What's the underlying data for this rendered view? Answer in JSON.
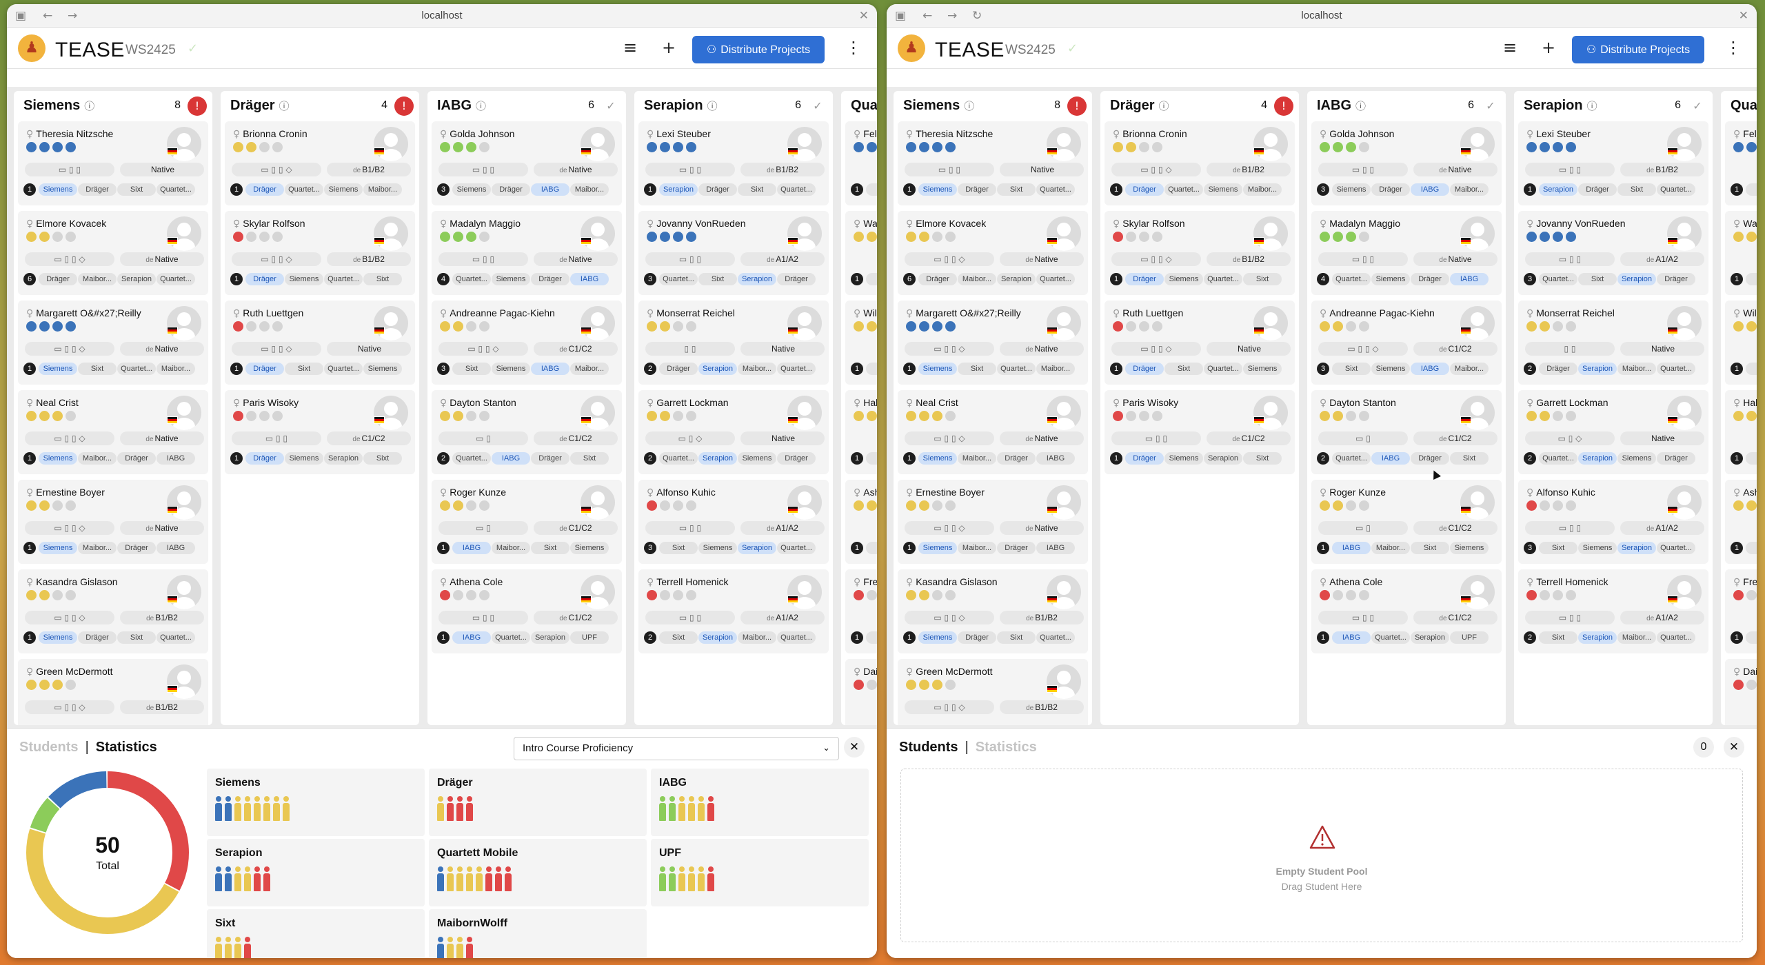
{
  "browser": {
    "url": "localhost"
  },
  "app": {
    "title": "TEASE",
    "semester": "WS2425",
    "distribute_label": "Distribute Projects"
  },
  "colors": {
    "primary": "#2f6fd4",
    "danger": "#d93636",
    "blue_dot": "#3b73b9",
    "yellow_dot": "#e9c752",
    "green_dot": "#8ccc5a",
    "red_dot": "#e04848",
    "grey_dot": "#d5d5d5"
  },
  "columns": [
    {
      "name": "Siemens",
      "count": "8",
      "status": "warning",
      "students": [
        {
          "name": "Theresia Nitzsche",
          "skill": [
            "b",
            "b",
            "b",
            "b"
          ],
          "devices": "▭ ▯ ▯",
          "lang_prefix": "",
          "lang": "Native",
          "pref_count": "1",
          "prefs": [
            "Siemens",
            "Dräger",
            "Sixt",
            "Quartet..."
          ],
          "hl": 0
        },
        {
          "name": "Elmore Kovacek",
          "skill": [
            "y",
            "y",
            "g",
            "g"
          ],
          "devices": "▭ ▯ ▯ ◇",
          "lang_prefix": "de",
          "lang": "Native",
          "pref_count": "6",
          "prefs": [
            "Dräger",
            "Maibor...",
            "Serapion",
            "Quartet..."
          ],
          "hl": -1
        },
        {
          "name": "Margarett O&#x27;Reilly",
          "skill": [
            "b",
            "b",
            "b",
            "b"
          ],
          "devices": "▭ ▯ ▯ ◇",
          "lang_prefix": "de",
          "lang": "Native",
          "pref_count": "1",
          "prefs": [
            "Siemens",
            "Sixt",
            "Quartet...",
            "Maibor..."
          ],
          "hl": 0
        },
        {
          "name": "Neal Crist",
          "skill": [
            "y",
            "y",
            "y",
            "g"
          ],
          "devices": "▭ ▯ ▯ ◇",
          "lang_prefix": "de",
          "lang": "Native",
          "pref_count": "1",
          "prefs": [
            "Siemens",
            "Maibor...",
            "Dräger",
            "IABG"
          ],
          "hl": 0
        },
        {
          "name": "Ernestine Boyer",
          "skill": [
            "y",
            "y",
            "g",
            "g"
          ],
          "devices": "▭ ▯ ▯ ◇",
          "lang_prefix": "de",
          "lang": "Native",
          "pref_count": "1",
          "prefs": [
            "Siemens",
            "Maibor...",
            "Dräger",
            "IABG"
          ],
          "hl": 0
        },
        {
          "name": "Kasandra Gislason",
          "skill": [
            "y",
            "y",
            "g",
            "g"
          ],
          "devices": "▭ ▯ ▯ ◇",
          "lang_prefix": "de",
          "lang": "B1/B2",
          "pref_count": "1",
          "prefs": [
            "Siemens",
            "Dräger",
            "Sixt",
            "Quartet..."
          ],
          "hl": 0
        },
        {
          "name": "Green McDermott",
          "skill": [
            "y",
            "y",
            "y",
            "g"
          ],
          "devices": "▭ ▯ ▯ ◇",
          "lang_prefix": "de",
          "lang": "B1/B2",
          "pref_count": "",
          "prefs": [],
          "hl": -1
        }
      ]
    },
    {
      "name": "Dräger",
      "count": "4",
      "status": "warning",
      "students": [
        {
          "name": "Brionna Cronin",
          "skill": [
            "y",
            "y",
            "g",
            "g"
          ],
          "devices": "▭ ▯ ▯ ◇",
          "lang_prefix": "de",
          "lang": "B1/B2",
          "pref_count": "1",
          "prefs": [
            "Dräger",
            "Quartet...",
            "Siemens",
            "Maibor..."
          ],
          "hl": 0
        },
        {
          "name": "Skylar Rolfson",
          "skill": [
            "r",
            "g",
            "g",
            "g"
          ],
          "devices": "▭ ▯ ▯ ◇",
          "lang_prefix": "de",
          "lang": "B1/B2",
          "pref_count": "1",
          "prefs": [
            "Dräger",
            "Siemens",
            "Quartet...",
            "Sixt"
          ],
          "hl": 0
        },
        {
          "name": "Ruth Luettgen",
          "skill": [
            "r",
            "g",
            "g",
            "g"
          ],
          "devices": "▭ ▯ ▯ ◇",
          "lang_prefix": "",
          "lang": "Native",
          "pref_count": "1",
          "prefs": [
            "Dräger",
            "Sixt",
            "Quartet...",
            "Siemens"
          ],
          "hl": 0
        },
        {
          "name": "Paris Wisoky",
          "skill": [
            "r",
            "g",
            "g",
            "g"
          ],
          "devices": "▭ ▯ ▯",
          "lang_prefix": "de",
          "lang": "C1/C2",
          "pref_count": "1",
          "prefs": [
            "Dräger",
            "Siemens",
            "Serapion",
            "Sixt"
          ],
          "hl": 0
        }
      ]
    },
    {
      "name": "IABG",
      "count": "6",
      "status": "ok",
      "students": [
        {
          "name": "Golda Johnson",
          "skill": [
            "gr",
            "gr",
            "gr",
            "g"
          ],
          "devices": "▭ ▯ ▯",
          "lang_prefix": "de",
          "lang": "Native",
          "pref_count": "3",
          "prefs": [
            "Siemens",
            "Dräger",
            "IABG",
            "Maibor..."
          ],
          "hl": 2
        },
        {
          "name": "Madalyn Maggio",
          "skill": [
            "gr",
            "gr",
            "gr",
            "g"
          ],
          "devices": "▭ ▯ ▯",
          "lang_prefix": "de",
          "lang": "Native",
          "pref_count": "4",
          "prefs": [
            "Quartet...",
            "Siemens",
            "Dräger",
            "IABG"
          ],
          "hl": 3
        },
        {
          "name": "Andreanne Pagac-Kiehn",
          "skill": [
            "y",
            "y",
            "g",
            "g"
          ],
          "devices": "▭ ▯ ▯ ◇",
          "lang_prefix": "de",
          "lang": "C1/C2",
          "pref_count": "3",
          "prefs": [
            "Sixt",
            "Siemens",
            "IABG",
            "Maibor..."
          ],
          "hl": 2
        },
        {
          "name": "Dayton Stanton",
          "skill": [
            "y",
            "y",
            "g",
            "g"
          ],
          "devices": "▭ ▯",
          "lang_prefix": "de",
          "lang": "C1/C2",
          "pref_count": "2",
          "prefs": [
            "Quartet...",
            "IABG",
            "Dräger",
            "Sixt"
          ],
          "hl": 1
        },
        {
          "name": "Roger Kunze",
          "skill": [
            "y",
            "y",
            "g",
            "g"
          ],
          "devices": "▭ ▯",
          "lang_prefix": "de",
          "lang": "C1/C2",
          "pref_count": "1",
          "prefs": [
            "IABG",
            "Maibor...",
            "Sixt",
            "Siemens"
          ],
          "hl": 0
        },
        {
          "name": "Athena Cole",
          "skill": [
            "r",
            "g",
            "g",
            "g"
          ],
          "devices": "▭ ▯ ▯",
          "lang_prefix": "de",
          "lang": "C1/C2",
          "pref_count": "1",
          "prefs": [
            "IABG",
            "Quartet...",
            "Serapion",
            "UPF"
          ],
          "hl": 0
        }
      ]
    },
    {
      "name": "Serapion",
      "count": "6",
      "status": "ok",
      "students": [
        {
          "name": "Lexi Steuber",
          "skill": [
            "b",
            "b",
            "b",
            "b"
          ],
          "devices": "▭ ▯ ▯",
          "lang_prefix": "de",
          "lang": "B1/B2",
          "pref_count": "1",
          "prefs": [
            "Serapion",
            "Dräger",
            "Sixt",
            "Quartet..."
          ],
          "hl": 0
        },
        {
          "name": "Jovanny VonRueden",
          "skill": [
            "b",
            "b",
            "b",
            "b"
          ],
          "devices": "▭ ▯ ▯",
          "lang_prefix": "de",
          "lang": "A1/A2",
          "pref_count": "3",
          "prefs": [
            "Quartet...",
            "Sixt",
            "Serapion",
            "Dräger"
          ],
          "hl": 2
        },
        {
          "name": "Monserrat Reichel",
          "skill": [
            "y",
            "y",
            "g",
            "g"
          ],
          "devices": "▯ ▯",
          "lang_prefix": "",
          "lang": "Native",
          "pref_count": "2",
          "prefs": [
            "Dräger",
            "Serapion",
            "Maibor...",
            "Quartet..."
          ],
          "hl": 1
        },
        {
          "name": "Garrett Lockman",
          "skill": [
            "y",
            "y",
            "g",
            "g"
          ],
          "devices": "▭ ▯ ◇",
          "lang_prefix": "",
          "lang": "Native",
          "pref_count": "2",
          "prefs": [
            "Quartet...",
            "Serapion",
            "Siemens",
            "Dräger"
          ],
          "hl": 1
        },
        {
          "name": "Alfonso Kuhic",
          "skill": [
            "r",
            "g",
            "g",
            "g"
          ],
          "devices": "▭ ▯ ▯",
          "lang_prefix": "de",
          "lang": "A1/A2",
          "pref_count": "3",
          "prefs": [
            "Sixt",
            "Siemens",
            "Serapion",
            "Quartet..."
          ],
          "hl": 2
        },
        {
          "name": "Terrell Homenick",
          "skill": [
            "r",
            "g",
            "g",
            "g"
          ],
          "devices": "▭ ▯ ▯",
          "lang_prefix": "de",
          "lang": "A1/A2",
          "pref_count": "2",
          "prefs": [
            "Sixt",
            "Serapion",
            "Maibor...",
            "Quartet..."
          ],
          "hl": 1
        }
      ]
    },
    {
      "name": "Qua",
      "count": "",
      "status": "",
      "students": [
        {
          "name": "Feli",
          "skill": [
            "b",
            "b",
            "b",
            "b"
          ],
          "devices": "",
          "lang_prefix": "",
          "lang": "",
          "pref_count": "1",
          "prefs": [
            "Q"
          ],
          "hl": -1
        },
        {
          "name": "Wa",
          "skill": [
            "y",
            "y",
            "g",
            "g"
          ],
          "devices": "",
          "lang_prefix": "",
          "lang": "",
          "pref_count": "1",
          "prefs": [
            "Q"
          ],
          "hl": -1
        },
        {
          "name": "Wil",
          "skill": [
            "y",
            "y",
            "g",
            "g"
          ],
          "devices": "",
          "lang_prefix": "",
          "lang": "",
          "pref_count": "1",
          "prefs": [
            "Q"
          ],
          "hl": -1
        },
        {
          "name": "Hal",
          "skill": [
            "y",
            "y",
            "g",
            "g"
          ],
          "devices": "",
          "lang_prefix": "",
          "lang": "",
          "pref_count": "1",
          "prefs": [
            "Q"
          ],
          "hl": -1
        },
        {
          "name": "Ash",
          "skill": [
            "y",
            "y",
            "g",
            "g"
          ],
          "devices": "",
          "lang_prefix": "",
          "lang": "",
          "pref_count": "1",
          "prefs": [
            "Q"
          ],
          "hl": -1
        },
        {
          "name": "Fre",
          "skill": [
            "r",
            "g",
            "g",
            "g"
          ],
          "devices": "",
          "lang_prefix": "",
          "lang": "",
          "pref_count": "1",
          "prefs": [
            "Q"
          ],
          "hl": -1
        },
        {
          "name": "Dai",
          "skill": [
            "r",
            "g",
            "g",
            "g"
          ],
          "devices": "",
          "lang_prefix": "",
          "lang": "",
          "pref_count": "",
          "prefs": [],
          "hl": -1
        }
      ]
    }
  ],
  "bottom_left": {
    "tab_students": "Students",
    "tab_statistics": "Statistics",
    "active": "statistics",
    "dropdown_value": "Intro Course Proficiency",
    "total": "50",
    "total_label": "Total",
    "donut": [
      {
        "share": 0.33,
        "color": "#e04848"
      },
      {
        "share": 0.47,
        "color": "#e9c752"
      },
      {
        "share": 0.07,
        "color": "#8ccc5a"
      },
      {
        "share": 0.13,
        "color": "#3b73b9"
      }
    ],
    "projects": [
      {
        "name": "Siemens",
        "people": [
          "b",
          "b",
          "y",
          "y",
          "y",
          "y",
          "y",
          "y"
        ]
      },
      {
        "name": "Dräger",
        "people": [
          "y",
          "r",
          "r",
          "r"
        ]
      },
      {
        "name": "IABG",
        "people": [
          "gr",
          "gr",
          "y",
          "y",
          "y",
          "r"
        ]
      },
      {
        "name": "Serapion",
        "people": [
          "b",
          "b",
          "y",
          "y",
          "r",
          "r"
        ]
      },
      {
        "name": "Quartett Mobile",
        "people": [
          "b",
          "y",
          "y",
          "y",
          "y",
          "r",
          "r",
          "r"
        ]
      },
      {
        "name": "UPF",
        "people": [
          "gr",
          "gr",
          "y",
          "y",
          "y",
          "r"
        ]
      },
      {
        "name": "Sixt",
        "people": [
          "y",
          "y",
          "y",
          "r"
        ]
      },
      {
        "name": "MaibornWolff",
        "people": [
          "b",
          "y",
          "y",
          "r"
        ]
      }
    ]
  },
  "bottom_right": {
    "tab_students": "Students",
    "tab_statistics": "Statistics",
    "active": "students",
    "count": "0",
    "empty_title": "Empty Student Pool",
    "empty_sub": "Drag Student Here"
  }
}
